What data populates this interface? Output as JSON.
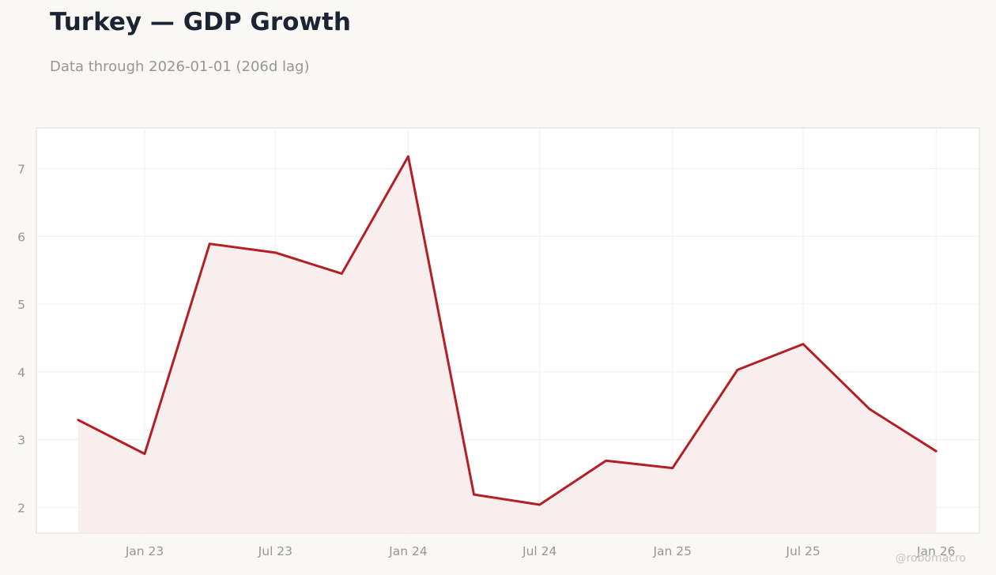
{
  "header": {
    "title": "Turkey — GDP Growth",
    "subtitle": "Data through 2026-01-01 (206d lag)"
  },
  "watermark": "@robomacro",
  "colors": {
    "line": "#b31f24",
    "fill": "#f8ebeb",
    "plot_border": "#dedbd3",
    "grid": "#efefef",
    "background": "#f9f8f5"
  },
  "chart_data": {
    "type": "area",
    "title": "Turkey — GDP Growth",
    "subtitle": "Data through 2026-01-01 (206d lag)",
    "xlabel": "",
    "ylabel": "",
    "grid": true,
    "x_tick_labels": [
      "Jan 23",
      "Jul 23",
      "Jan 24",
      "Jul 24",
      "Jan 25",
      "Jul 25",
      "Jan 26"
    ],
    "x_tick_dates": [
      "2023-01-01",
      "2023-07-01",
      "2024-01-01",
      "2024-07-01",
      "2025-01-01",
      "2025-07-01",
      "2026-01-01"
    ],
    "y_ticks": [
      2,
      3,
      4,
      5,
      6,
      7
    ],
    "xlim": [
      "2022-08-04",
      "2026-03-02"
    ],
    "ylim": [
      1.62,
      7.6
    ],
    "series": [
      {
        "x": [
          "2022-10-01",
          "2023-01-01",
          "2023-04-01",
          "2023-07-01",
          "2023-10-01",
          "2024-01-01",
          "2024-04-01",
          "2024-07-01",
          "2024-10-01",
          "2025-01-01",
          "2025-04-01",
          "2025-07-01",
          "2025-10-01",
          "2026-01-01"
        ],
        "values": [
          3.29,
          2.79,
          5.89,
          5.76,
          5.45,
          7.18,
          2.19,
          2.04,
          2.69,
          2.58,
          4.03,
          4.41,
          3.45,
          2.83
        ]
      }
    ]
  }
}
